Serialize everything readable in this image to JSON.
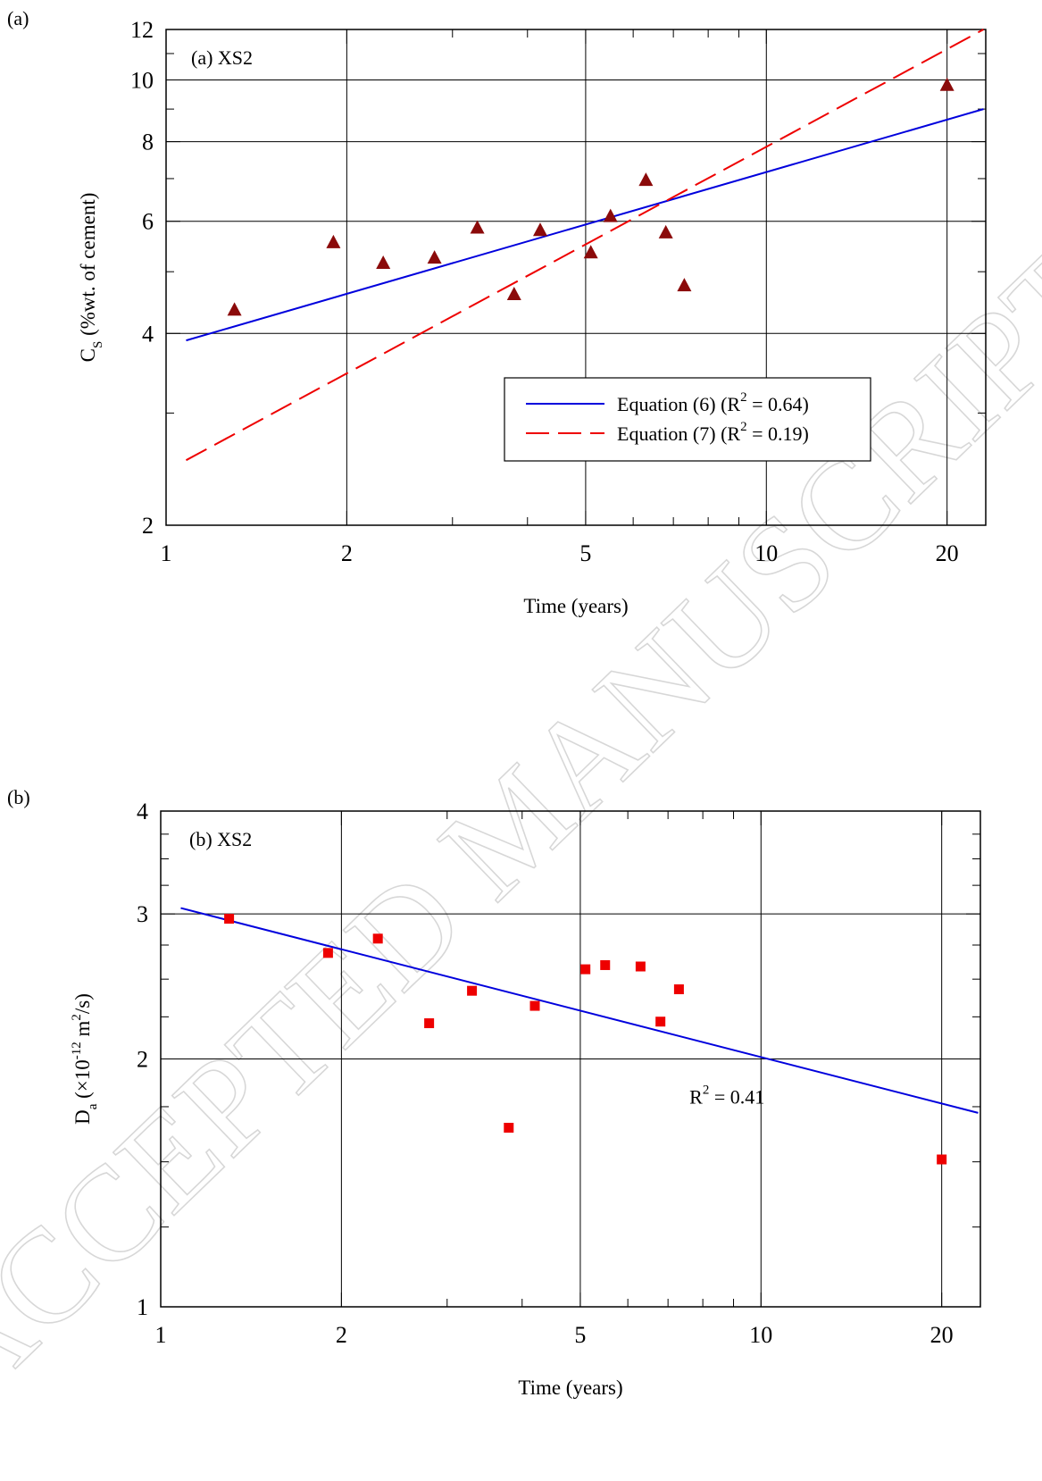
{
  "watermark": "ACCEPTED MANUSCRIPT",
  "colors": {
    "blue": "#0000dd",
    "red": "#ee0000",
    "triangle": "#8b0a0a",
    "square": "#ee0000",
    "grid": "#000000"
  },
  "chart_data": [
    {
      "panel_label": "(a)",
      "inset_label": "(a) XS2",
      "type": "scatter",
      "x_scale": "log",
      "y_scale": "log",
      "xlabel": "Time  (years)",
      "ylabel_main": "C",
      "ylabel_sub": "S",
      "ylabel_rest": "  (%wt. of cement)",
      "xlim": [
        1,
        23.2
      ],
      "ylim": [
        2,
        12
      ],
      "x_ticks": [
        1,
        2,
        5,
        10,
        20
      ],
      "y_ticks": [
        2,
        4,
        6,
        8,
        10,
        12
      ],
      "marker": "triangle",
      "points": [
        {
          "x": 1.3,
          "y": 4.35
        },
        {
          "x": 1.9,
          "y": 5.55
        },
        {
          "x": 2.3,
          "y": 5.15
        },
        {
          "x": 2.8,
          "y": 5.25
        },
        {
          "x": 3.3,
          "y": 5.85
        },
        {
          "x": 3.8,
          "y": 4.6
        },
        {
          "x": 4.2,
          "y": 5.8
        },
        {
          "x": 5.1,
          "y": 5.35
        },
        {
          "x": 5.5,
          "y": 6.1
        },
        {
          "x": 6.3,
          "y": 6.95
        },
        {
          "x": 6.8,
          "y": 5.75
        },
        {
          "x": 7.3,
          "y": 4.75
        },
        {
          "x": 20,
          "y": 9.8
        }
      ],
      "fits": [
        {
          "name_main": "Equation (6) (R",
          "name_sup": "2",
          "name_rest": " = 0.64)",
          "style": "solid",
          "color": "#0000dd",
          "x": [
            1.08,
            23
          ],
          "y": [
            3.9,
            9.0
          ]
        },
        {
          "name_main": "Equation (7) (R",
          "name_sup": "2",
          "name_rest": " = 0.19)",
          "style": "dashed",
          "color": "#ee0000",
          "x": [
            1.08,
            23
          ],
          "y": [
            2.53,
            12.0
          ]
        }
      ],
      "legend": "inside-lower-right"
    },
    {
      "panel_label": "(b)",
      "inset_label": "(b) XS2",
      "type": "scatter",
      "x_scale": "log",
      "y_scale": "log",
      "xlabel": "Time  (years)",
      "ylabel_main": "D",
      "ylabel_sub": "a",
      "ylabel_pre": "  (×10",
      "ylabel_sup1": "-12",
      "ylabel_mid": " m",
      "ylabel_sup2": "2",
      "ylabel_rest": "/s)",
      "xlim": [
        1,
        23.2
      ],
      "ylim": [
        1,
        4
      ],
      "x_ticks": [
        1,
        2,
        5,
        10,
        20
      ],
      "y_ticks": [
        1,
        2,
        3,
        4
      ],
      "marker": "square",
      "points": [
        {
          "x": 1.3,
          "y": 2.96
        },
        {
          "x": 1.9,
          "y": 2.69
        },
        {
          "x": 2.3,
          "y": 2.8
        },
        {
          "x": 2.8,
          "y": 2.21
        },
        {
          "x": 3.3,
          "y": 2.42
        },
        {
          "x": 3.8,
          "y": 1.65
        },
        {
          "x": 4.2,
          "y": 2.32
        },
        {
          "x": 5.1,
          "y": 2.57
        },
        {
          "x": 5.5,
          "y": 2.6
        },
        {
          "x": 6.3,
          "y": 2.59
        },
        {
          "x": 6.8,
          "y": 2.22
        },
        {
          "x": 7.3,
          "y": 2.43
        },
        {
          "x": 20,
          "y": 1.51
        }
      ],
      "fits": [
        {
          "name_main": "",
          "style": "solid",
          "color": "#0000dd",
          "x": [
            1.08,
            23
          ],
          "y": [
            3.05,
            1.72
          ]
        }
      ],
      "annotation_main": "R",
      "annotation_sup": "2",
      "annotation_rest": " = 0.41",
      "annotation_at": {
        "x": 7.6,
        "y": 1.8
      }
    }
  ]
}
